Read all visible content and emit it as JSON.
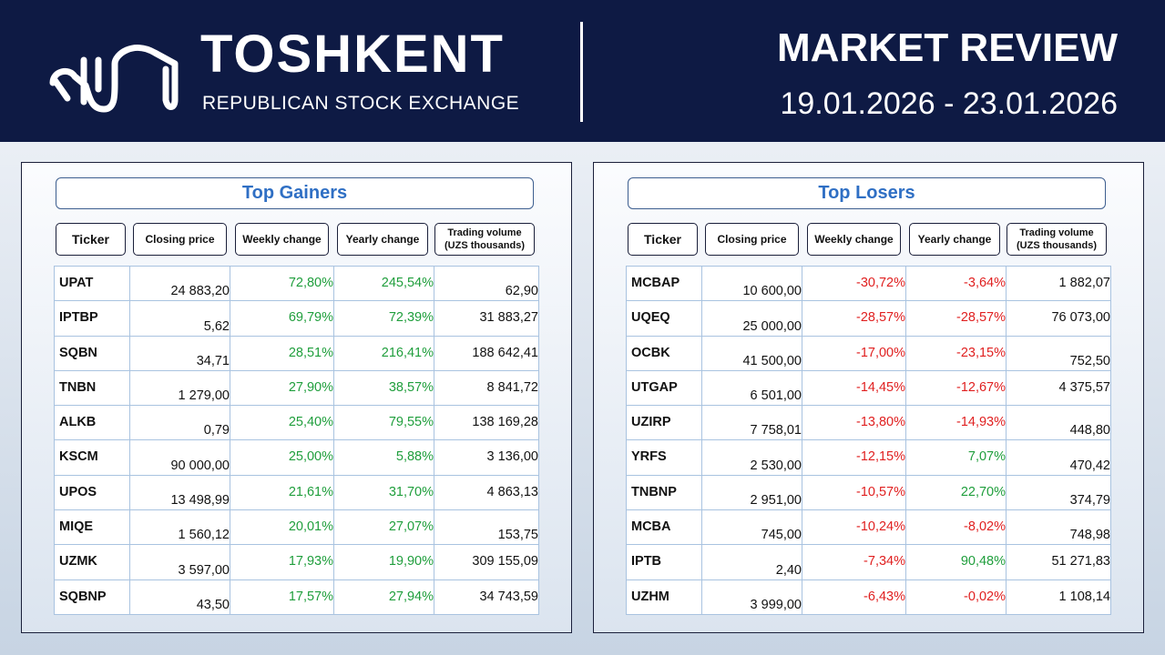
{
  "header": {
    "brand_title": "TOSHKENT",
    "brand_subtitle": "REPUBLICAN STOCK EXCHANGE",
    "review_title": "MARKET REVIEW",
    "review_dates": "19.01.2026 - 23.01.2026"
  },
  "columns": {
    "ticker": "Ticker",
    "closing_price": "Closing price",
    "weekly_change": "Weekly change",
    "yearly_change": "Yearly change",
    "trading_volume": "Trading volume (UZS thousands)"
  },
  "gainers": {
    "title": "Top Gainers",
    "rows": [
      {
        "ticker": "UPAT",
        "price": "24 883,20",
        "weekly": "72,80%",
        "weekly_sign": "pos",
        "yearly": "245,54%",
        "yearly_sign": "pos",
        "volume": "62,90",
        "volume_pos": "bot"
      },
      {
        "ticker": "IPTBP",
        "price": "5,62",
        "weekly": "69,79%",
        "weekly_sign": "pos",
        "yearly": "72,39%",
        "yearly_sign": "pos",
        "volume": "31 883,27",
        "volume_pos": "top"
      },
      {
        "ticker": "SQBN",
        "price": "34,71",
        "weekly": "28,51%",
        "weekly_sign": "pos",
        "yearly": "216,41%",
        "yearly_sign": "pos",
        "volume": "188 642,41",
        "volume_pos": "top"
      },
      {
        "ticker": "TNBN",
        "price": "1 279,00",
        "weekly": "27,90%",
        "weekly_sign": "pos",
        "yearly": "38,57%",
        "yearly_sign": "pos",
        "volume": "8 841,72",
        "volume_pos": "top"
      },
      {
        "ticker": "ALKB",
        "price": "0,79",
        "weekly": "25,40%",
        "weekly_sign": "pos",
        "yearly": "79,55%",
        "yearly_sign": "pos",
        "volume": "138 169,28",
        "volume_pos": "top"
      },
      {
        "ticker": "KSCM",
        "price": "90 000,00",
        "weekly": "25,00%",
        "weekly_sign": "pos",
        "yearly": "5,88%",
        "yearly_sign": "pos",
        "volume": "3 136,00",
        "volume_pos": "top"
      },
      {
        "ticker": "UPOS",
        "price": "13 498,99",
        "weekly": "21,61%",
        "weekly_sign": "pos",
        "yearly": "31,70%",
        "yearly_sign": "pos",
        "volume": "4 863,13",
        "volume_pos": "top"
      },
      {
        "ticker": "MIQE",
        "price": "1 560,12",
        "weekly": "20,01%",
        "weekly_sign": "pos",
        "yearly": "27,07%",
        "yearly_sign": "pos",
        "volume": "153,75",
        "volume_pos": "bot"
      },
      {
        "ticker": "UZMK",
        "price": "3 597,00",
        "weekly": "17,93%",
        "weekly_sign": "pos",
        "yearly": "19,90%",
        "yearly_sign": "pos",
        "volume": "309 155,09",
        "volume_pos": "top"
      },
      {
        "ticker": "SQBNP",
        "price": "43,50",
        "weekly": "17,57%",
        "weekly_sign": "pos",
        "yearly": "27,94%",
        "yearly_sign": "pos",
        "volume": "34 743,59",
        "volume_pos": "top"
      }
    ]
  },
  "losers": {
    "title": "Top Losers",
    "rows": [
      {
        "ticker": "MCBAP",
        "price": "10 600,00",
        "weekly": "-30,72%",
        "weekly_sign": "neg",
        "yearly": "-3,64%",
        "yearly_sign": "neg",
        "volume": "1 882,07",
        "volume_pos": "top"
      },
      {
        "ticker": "UQEQ",
        "price": "25 000,00",
        "weekly": "-28,57%",
        "weekly_sign": "neg",
        "yearly": "-28,57%",
        "yearly_sign": "neg",
        "volume": "76 073,00",
        "volume_pos": "top"
      },
      {
        "ticker": "OCBK",
        "price": "41 500,00",
        "weekly": "-17,00%",
        "weekly_sign": "neg",
        "yearly": "-23,15%",
        "yearly_sign": "neg",
        "volume": "752,50",
        "volume_pos": "bot"
      },
      {
        "ticker": "UTGAP",
        "price": "6 501,00",
        "weekly": "-14,45%",
        "weekly_sign": "neg",
        "yearly": "-12,67%",
        "yearly_sign": "neg",
        "volume": "4 375,57",
        "volume_pos": "top"
      },
      {
        "ticker": "UZIRP",
        "price": "7 758,01",
        "weekly": "-13,80%",
        "weekly_sign": "neg",
        "yearly": "-14,93%",
        "yearly_sign": "neg",
        "volume": "448,80",
        "volume_pos": "bot"
      },
      {
        "ticker": "YRFS",
        "price": "2 530,00",
        "weekly": "-12,15%",
        "weekly_sign": "neg",
        "yearly": "7,07%",
        "yearly_sign": "pos",
        "volume": "470,42",
        "volume_pos": "bot"
      },
      {
        "ticker": "TNBNP",
        "price": "2 951,00",
        "weekly": "-10,57%",
        "weekly_sign": "neg",
        "yearly": "22,70%",
        "yearly_sign": "pos",
        "volume": "374,79",
        "volume_pos": "bot"
      },
      {
        "ticker": "MCBA",
        "price": "745,00",
        "weekly": "-10,24%",
        "weekly_sign": "neg",
        "yearly": "-8,02%",
        "yearly_sign": "neg",
        "volume": "748,98",
        "volume_pos": "bot"
      },
      {
        "ticker": "IPTB",
        "price": "2,40",
        "weekly": "-7,34%",
        "weekly_sign": "neg",
        "yearly": "90,48%",
        "yearly_sign": "pos",
        "volume": "51 271,83",
        "volume_pos": "top"
      },
      {
        "ticker": "UZHM",
        "price": "3 999,00",
        "weekly": "-6,43%",
        "weekly_sign": "neg",
        "yearly": "-0,02%",
        "yearly_sign": "neg",
        "volume": "1 108,14",
        "volume_pos": "top"
      }
    ]
  }
}
